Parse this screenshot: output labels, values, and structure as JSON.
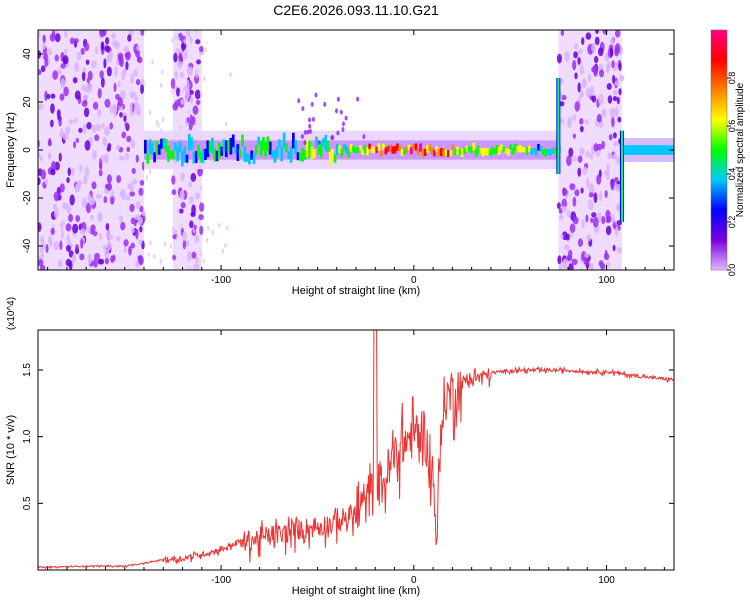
{
  "title": "C2E6.2026.093.11.10.G21",
  "chart_data": [
    {
      "type": "heatmap",
      "name": "spectrogram",
      "xlabel": "Height of straight line (km)",
      "ylabel": "Frequency (Hz)",
      "xlim": [
        -195,
        135
      ],
      "ylim": [
        -50,
        50
      ],
      "xticks": [
        -100,
        0,
        100
      ],
      "yticks": [
        -40,
        -20,
        0,
        20,
        40
      ],
      "colorbar": {
        "label": "Normalized spectral amplitude",
        "range": [
          0.0,
          1.0
        ],
        "ticks": [
          "0.0",
          "0.2",
          "0.4",
          "0.6",
          "0.8"
        ],
        "colors": [
          "#e6b8ff",
          "#7a00e0",
          "#0000ff",
          "#00c8ff",
          "#00ff00",
          "#ffff00",
          "#ff8000",
          "#ff0000",
          "#ff0080"
        ]
      },
      "features": {
        "noise_regions_km": [
          [
            -195,
            -140
          ],
          [
            -125,
            -110
          ],
          [
            75,
            108
          ]
        ],
        "signal_band_km": [
          -140,
          75
        ],
        "signal_band_after_km": [
          108,
          135
        ],
        "peak_amplitude_band_km": [
          -25,
          20
        ]
      }
    },
    {
      "type": "line",
      "name": "snr",
      "xlabel": "Height of straight line (km)",
      "ylabel": "SNR (10 * v/v)",
      "y_multiplier": "(x10^4)",
      "xlim": [
        -195,
        135
      ],
      "ylim": [
        0,
        1.8
      ],
      "xticks": [
        -100,
        0,
        100
      ],
      "yticks": [
        "0.5",
        "1.0",
        "1.5"
      ],
      "series": [
        {
          "name": "SNR",
          "color": "#ee3333",
          "x": [
            -195,
            -170,
            -150,
            -140,
            -130,
            -120,
            -110,
            -100,
            -90,
            -80,
            -70,
            -60,
            -50,
            -40,
            -30,
            -25,
            -20,
            -15,
            -10,
            -5,
            0,
            5,
            10,
            12,
            15,
            20,
            30,
            40,
            50,
            60,
            70,
            80,
            90,
            100,
            110,
            120,
            135
          ],
          "values": [
            0.02,
            0.03,
            0.03,
            0.05,
            0.08,
            0.09,
            0.12,
            0.16,
            0.22,
            0.26,
            0.28,
            0.32,
            0.34,
            0.38,
            0.45,
            0.55,
            0.65,
            0.72,
            0.9,
            1.0,
            1.05,
            1.1,
            0.7,
            0.3,
            1.3,
            1.38,
            1.45,
            1.48,
            1.5,
            1.5,
            1.5,
            1.5,
            1.49,
            1.49,
            1.47,
            1.45,
            1.43
          ]
        }
      ]
    }
  ]
}
